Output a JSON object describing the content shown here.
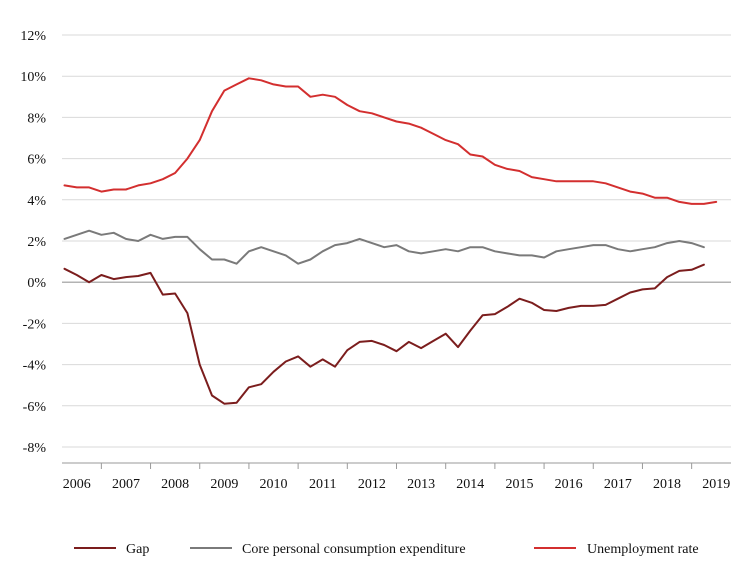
{
  "chart_data": {
    "type": "line",
    "xlim": [
      2005.7,
      2019.3
    ],
    "ylim": [
      -8,
      12
    ],
    "y_ticks": [
      12,
      10,
      8,
      6,
      4,
      2,
      0,
      -2,
      -4,
      -6,
      -8
    ],
    "y_tick_labels": [
      "12%",
      "10%",
      "8%",
      "6%",
      "4%",
      "2%",
      "0%",
      "-2%",
      "-4%",
      "-6%",
      "-8%"
    ],
    "x_ticks": [
      2006,
      2007,
      2008,
      2009,
      2010,
      2011,
      2012,
      2013,
      2014,
      2015,
      2016,
      2017,
      2018,
      2019
    ],
    "x_tick_labels": [
      "2006",
      "2007",
      "2008",
      "2009",
      "2010",
      "2011",
      "2012",
      "2013",
      "2014",
      "2015",
      "2016",
      "2017",
      "2018",
      "2019"
    ],
    "grid": "horizontal",
    "legend_position": "bottom",
    "series": [
      {
        "name": "Gap",
        "color": "#7b1d1d",
        "points": [
          [
            2005.75,
            0.65
          ],
          [
            2006.0,
            0.35
          ],
          [
            2006.25,
            0.0
          ],
          [
            2006.5,
            0.35
          ],
          [
            2006.75,
            0.15
          ],
          [
            2007.0,
            0.25
          ],
          [
            2007.25,
            0.3
          ],
          [
            2007.5,
            0.45
          ],
          [
            2007.75,
            -0.6
          ],
          [
            2008.0,
            -0.55
          ],
          [
            2008.25,
            -1.5
          ],
          [
            2008.5,
            -4.0
          ],
          [
            2008.75,
            -5.5
          ],
          [
            2009.0,
            -5.9
          ],
          [
            2009.25,
            -5.85
          ],
          [
            2009.5,
            -5.1
          ],
          [
            2009.75,
            -4.95
          ],
          [
            2010.0,
            -4.35
          ],
          [
            2010.25,
            -3.85
          ],
          [
            2010.5,
            -3.6
          ],
          [
            2010.75,
            -4.1
          ],
          [
            2011.0,
            -3.75
          ],
          [
            2011.25,
            -4.1
          ],
          [
            2011.5,
            -3.3
          ],
          [
            2011.75,
            -2.9
          ],
          [
            2012.0,
            -2.85
          ],
          [
            2012.25,
            -3.05
          ],
          [
            2012.5,
            -3.35
          ],
          [
            2012.75,
            -2.9
          ],
          [
            2013.0,
            -3.2
          ],
          [
            2013.25,
            -2.85
          ],
          [
            2013.5,
            -2.5
          ],
          [
            2013.75,
            -3.15
          ],
          [
            2014.0,
            -2.35
          ],
          [
            2014.25,
            -1.6
          ],
          [
            2014.5,
            -1.55
          ],
          [
            2014.75,
            -1.2
          ],
          [
            2015.0,
            -0.8
          ],
          [
            2015.25,
            -1.0
          ],
          [
            2015.5,
            -1.35
          ],
          [
            2015.75,
            -1.4
          ],
          [
            2016.0,
            -1.25
          ],
          [
            2016.25,
            -1.15
          ],
          [
            2016.5,
            -1.15
          ],
          [
            2016.75,
            -1.1
          ],
          [
            2017.0,
            -0.8
          ],
          [
            2017.25,
            -0.5
          ],
          [
            2017.5,
            -0.35
          ],
          [
            2017.75,
            -0.3
          ],
          [
            2018.0,
            0.25
          ],
          [
            2018.25,
            0.55
          ],
          [
            2018.5,
            0.6
          ],
          [
            2018.75,
            0.85
          ]
        ]
      },
      {
        "name": "Core personal consumption expenditure",
        "color": "#7a7a7a",
        "points": [
          [
            2005.75,
            2.1
          ],
          [
            2006.0,
            2.3
          ],
          [
            2006.25,
            2.5
          ],
          [
            2006.5,
            2.3
          ],
          [
            2006.75,
            2.4
          ],
          [
            2007.0,
            2.1
          ],
          [
            2007.25,
            2.0
          ],
          [
            2007.5,
            2.3
          ],
          [
            2007.75,
            2.1
          ],
          [
            2008.0,
            2.2
          ],
          [
            2008.25,
            2.2
          ],
          [
            2008.5,
            1.6
          ],
          [
            2008.75,
            1.1
          ],
          [
            2009.0,
            1.1
          ],
          [
            2009.25,
            0.9
          ],
          [
            2009.5,
            1.5
          ],
          [
            2009.75,
            1.7
          ],
          [
            2010.0,
            1.5
          ],
          [
            2010.25,
            1.3
          ],
          [
            2010.5,
            0.9
          ],
          [
            2010.75,
            1.1
          ],
          [
            2011.0,
            1.5
          ],
          [
            2011.25,
            1.8
          ],
          [
            2011.5,
            1.9
          ],
          [
            2011.75,
            2.1
          ],
          [
            2012.0,
            1.9
          ],
          [
            2012.25,
            1.7
          ],
          [
            2012.5,
            1.8
          ],
          [
            2012.75,
            1.5
          ],
          [
            2013.0,
            1.4
          ],
          [
            2013.25,
            1.5
          ],
          [
            2013.5,
            1.6
          ],
          [
            2013.75,
            1.5
          ],
          [
            2014.0,
            1.7
          ],
          [
            2014.25,
            1.7
          ],
          [
            2014.5,
            1.5
          ],
          [
            2014.75,
            1.4
          ],
          [
            2015.0,
            1.3
          ],
          [
            2015.25,
            1.3
          ],
          [
            2015.5,
            1.2
          ],
          [
            2015.75,
            1.5
          ],
          [
            2016.0,
            1.6
          ],
          [
            2016.25,
            1.7
          ],
          [
            2016.5,
            1.8
          ],
          [
            2016.75,
            1.8
          ],
          [
            2017.0,
            1.6
          ],
          [
            2017.25,
            1.5
          ],
          [
            2017.5,
            1.6
          ],
          [
            2017.75,
            1.7
          ],
          [
            2018.0,
            1.9
          ],
          [
            2018.25,
            2.0
          ],
          [
            2018.5,
            1.9
          ],
          [
            2018.75,
            1.7
          ]
        ]
      },
      {
        "name": "Unemployment rate",
        "color": "#d32f2f",
        "points": [
          [
            2005.75,
            4.7
          ],
          [
            2006.0,
            4.6
          ],
          [
            2006.25,
            4.6
          ],
          [
            2006.5,
            4.4
          ],
          [
            2006.75,
            4.5
          ],
          [
            2007.0,
            4.5
          ],
          [
            2007.25,
            4.7
          ],
          [
            2007.5,
            4.8
          ],
          [
            2007.75,
            5.0
          ],
          [
            2008.0,
            5.3
          ],
          [
            2008.25,
            6.0
          ],
          [
            2008.5,
            6.9
          ],
          [
            2008.75,
            8.3
          ],
          [
            2009.0,
            9.3
          ],
          [
            2009.25,
            9.6
          ],
          [
            2009.5,
            9.9
          ],
          [
            2009.75,
            9.8
          ],
          [
            2010.0,
            9.6
          ],
          [
            2010.25,
            9.5
          ],
          [
            2010.5,
            9.5
          ],
          [
            2010.75,
            9.0
          ],
          [
            2011.0,
            9.1
          ],
          [
            2011.25,
            9.0
          ],
          [
            2011.5,
            8.6
          ],
          [
            2011.75,
            8.3
          ],
          [
            2012.0,
            8.2
          ],
          [
            2012.25,
            8.0
          ],
          [
            2012.5,
            7.8
          ],
          [
            2012.75,
            7.7
          ],
          [
            2013.0,
            7.5
          ],
          [
            2013.25,
            7.2
          ],
          [
            2013.5,
            6.9
          ],
          [
            2013.75,
            6.7
          ],
          [
            2014.0,
            6.2
          ],
          [
            2014.25,
            6.1
          ],
          [
            2014.5,
            5.7
          ],
          [
            2014.75,
            5.5
          ],
          [
            2015.0,
            5.4
          ],
          [
            2015.25,
            5.1
          ],
          [
            2015.5,
            5.0
          ],
          [
            2015.75,
            4.9
          ],
          [
            2016.0,
            4.9
          ],
          [
            2016.25,
            4.9
          ],
          [
            2016.5,
            4.9
          ],
          [
            2016.75,
            4.8
          ],
          [
            2017.0,
            4.6
          ],
          [
            2017.25,
            4.4
          ],
          [
            2017.5,
            4.3
          ],
          [
            2017.75,
            4.1
          ],
          [
            2018.0,
            4.1
          ],
          [
            2018.25,
            3.9
          ],
          [
            2018.5,
            3.8
          ],
          [
            2018.75,
            3.8
          ],
          [
            2019.0,
            3.9
          ]
        ]
      }
    ]
  }
}
